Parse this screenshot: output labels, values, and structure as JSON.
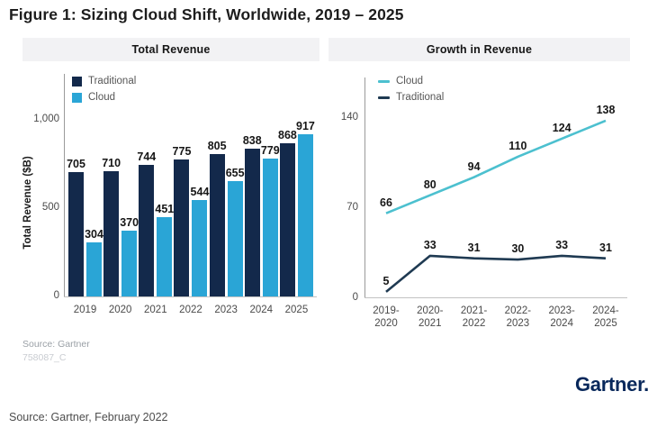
{
  "figure": {
    "title": "Figure 1: Sizing Cloud Shift, Worldwide, 2019 – 2025",
    "source_note": "Source: Gartner",
    "figure_id": "758087_C",
    "brand": "Gartner.",
    "caption": "Source: Gartner, February 2022"
  },
  "colors": {
    "traditional_bar": "#13294b",
    "cloud_bar": "#2aa5d6",
    "cloud_line": "#4cc0cf",
    "traditional_line": "#1f3a52",
    "header_bg": "#f2f2f4",
    "brand_navy": "#08285b"
  },
  "chart_data": [
    {
      "type": "bar",
      "title": "Total Revenue",
      "ylabel": "Total Revenue ($B)",
      "categories": [
        "2019",
        "2020",
        "2021",
        "2022",
        "2023",
        "2024",
        "2025"
      ],
      "series": [
        {
          "name": "Traditional",
          "color": "#13294b",
          "values": [
            705,
            710,
            744,
            775,
            805,
            838,
            868
          ]
        },
        {
          "name": "Cloud",
          "color": "#2aa5d6",
          "values": [
            304,
            370,
            451,
            544,
            655,
            779,
            917
          ]
        }
      ],
      "yticks": [
        0,
        500,
        1000
      ],
      "ytick_labels": [
        "0",
        "500",
        "1,000"
      ],
      "ylim": [
        0,
        1050
      ],
      "grid": false,
      "legend_position": "top-left"
    },
    {
      "type": "line",
      "title": "Growth in Revenue",
      "categories": [
        "2019-2020",
        "2020-2021",
        "2021-2022",
        "2022-2023",
        "2023-2024",
        "2024-2025"
      ],
      "series": [
        {
          "name": "Cloud",
          "color": "#4cc0cf",
          "values": [
            66,
            80,
            94,
            110,
            124,
            138
          ]
        },
        {
          "name": "Traditional",
          "color": "#1f3a52",
          "values": [
            5,
            33,
            31,
            30,
            33,
            31
          ]
        }
      ],
      "yticks": [
        0,
        70,
        140
      ],
      "ytick_labels": [
        "0",
        "70",
        "140"
      ],
      "ylim": [
        0,
        147
      ],
      "grid": false,
      "legend_position": "top-left"
    }
  ]
}
